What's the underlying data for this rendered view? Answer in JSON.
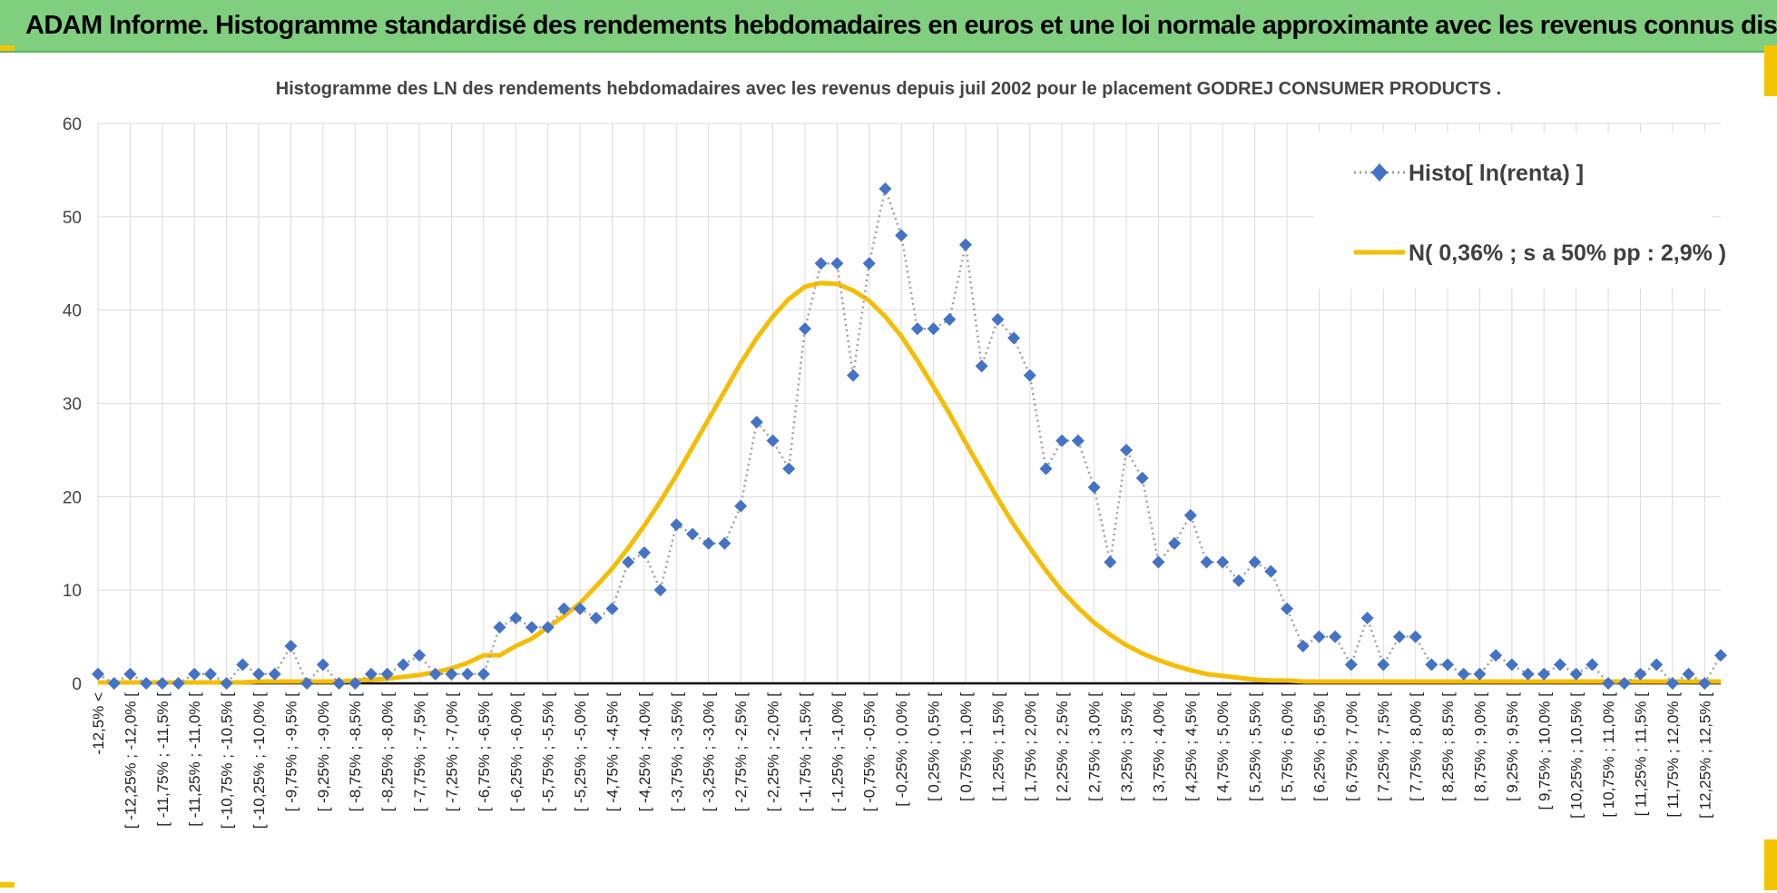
{
  "header": {
    "title": "ADAM Informe. Histogramme standardisé des rendements hebdomadaires en euros et une loi normale approximante avec les revenus connus distribués"
  },
  "colors": {
    "banner": "#7fcf7f",
    "accent": "#f5c400",
    "histo": "#4472c4",
    "normal": "#f5bd00"
  },
  "chart_data": {
    "type": "line",
    "title": "Histogramme des LN des rendements hebdomadaires avec les revenus depuis juil 2002 pour le placement GODREJ CONSUMER PRODUCTS .",
    "xlabel": "",
    "ylabel": "",
    "ylim": [
      0,
      60
    ],
    "yticks": [
      "0",
      "10",
      "20",
      "30",
      "40",
      "50",
      "60"
    ],
    "grid": true,
    "legend_position": "top-right",
    "x_labels": [
      "-12,5% <",
      "[ -12,25% ; -12,0% [",
      "[ -11,75% ; -11,5% [",
      "[ -11,25% ; -11,0% [",
      "[ -10,75% ; -10,5% [",
      "[ -10,25% ; -10,0% [",
      "[ -9,75% ; -9,5% [",
      "[ -9,25% ; -9,0% [",
      "[ -8,75% ; -8,5% [",
      "[ -8,25% ; -8,0% [",
      "[ -7,75% ; -7,5% [",
      "[ -7,25% ; -7,0% [",
      "[ -6,75% ; -6,5% [",
      "[ -6,25% ; -6,0% [",
      "[ -5,75% ; -5,5% [",
      "[ -5,25% ; -5,0% [",
      "[ -4,75% ; -4,5% [",
      "[ -4,25% ; -4,0% [",
      "[ -3,75% ; -3,5% [",
      "[ -3,25% ; -3,0% [",
      "[ -2,75% ; -2,5% [",
      "[ -2,25% ; -2,0% [",
      "[ -1,75% ; -1,5% [",
      "[ -1,25% ; -1,0% [",
      "[ -0,75% ; -0,5% [",
      "[ -0,25% ; 0,0% [",
      "[ 0,25% ; 0,5% [",
      "[ 0,75% ; 1,0% [",
      "[ 1,25% ; 1,5% [",
      "[ 1,75% ; 2,0% [",
      "[ 2,25% ; 2,5% [",
      "[ 2,75% ; 3,0% [",
      "[ 3,25% ; 3,5% [",
      "[ 3,75% ; 4,0% [",
      "[ 4,25% ; 4,5% [",
      "[ 4,75% ; 5,0% [",
      "[ 5,25% ; 5,5% [",
      "[ 5,75% ; 6,0% [",
      "[ 6,25% ; 6,5% [",
      "[ 6,75% ; 7,0% [",
      "[ 7,25% ; 7,5% [",
      "[ 7,75% ; 8,0% [",
      "[ 8,25% ; 8,5% [",
      "[ 8,75% ; 9,0% [",
      "[ 9,25% ; 9,5% [",
      "[ 9,75% ; 10,0% [",
      "[ 10,25% ; 10,5% [",
      "[ 10,75% ; 11,0% [",
      "[ 11,25% ; 11,5% [",
      "[ 11,75% ; 12,0% [",
      "[ 12,25% ; 12,5% ["
    ],
    "series": [
      {
        "name": "Histo[ ln(renta) ]",
        "style": "dotted-gray-with-diamond-markers",
        "values": [
          1,
          0,
          1,
          0,
          0,
          0,
          1,
          1,
          0,
          2,
          1,
          1,
          4,
          0,
          2,
          0,
          0,
          1,
          1,
          2,
          3,
          1,
          1,
          1,
          1,
          6,
          7,
          6,
          6,
          8,
          8,
          7,
          8,
          13,
          14,
          10,
          17,
          16,
          15,
          15,
          19,
          28,
          26,
          23,
          38,
          45,
          45,
          33,
          45,
          53,
          48,
          38,
          38,
          39,
          47,
          34,
          39,
          37,
          33,
          23,
          26,
          26,
          21,
          13,
          25,
          22,
          13,
          15,
          18,
          13,
          13,
          11,
          13,
          12,
          8,
          4,
          5,
          5,
          2,
          7,
          2,
          5,
          5,
          2,
          2,
          1,
          1,
          3,
          2,
          1,
          1,
          2,
          1,
          2,
          0,
          0,
          1,
          2,
          0,
          1,
          0,
          3
        ]
      },
      {
        "name": "N( 0,36% ; s a 50% pp : 2,9% )",
        "style": "solid-yellow",
        "values": [
          0.1,
          0.1,
          0.1,
          0.1,
          0.1,
          0.1,
          0.1,
          0.1,
          0.1,
          0.1,
          0.2,
          0.2,
          0.2,
          0.2,
          0.2,
          0.2,
          0.3,
          0.4,
          0.5,
          0.7,
          0.9,
          1.2,
          1.6,
          2.2,
          3,
          3,
          4,
          4.8,
          6,
          7.2,
          8.6,
          10.4,
          12.3,
          14.5,
          16.9,
          19.5,
          22.3,
          25.3,
          28.3,
          31.3,
          34.3,
          37,
          39.3,
          41.2,
          42.5,
          42.9,
          42.8,
          42.1,
          41,
          39.3,
          37.2,
          34.6,
          31.8,
          28.9,
          25.8,
          22.8,
          19.8,
          17,
          14.5,
          12.1,
          9.9,
          8.1,
          6.5,
          5.2,
          4.1,
          3.2,
          2.5,
          1.9,
          1.4,
          1,
          0.8,
          0.6,
          0.4,
          0.3,
          0.3,
          0.2,
          0.2,
          0.2,
          0.2,
          0.2,
          0.2,
          0.2,
          0.2,
          0.2,
          0.2,
          0.2,
          0.2,
          0.2,
          0.2,
          0.2,
          0.2,
          0.2,
          0.2,
          0.2,
          0.2,
          0.2,
          0.2,
          0.2,
          0.2,
          0.2,
          0.2,
          0.2
        ]
      }
    ]
  }
}
